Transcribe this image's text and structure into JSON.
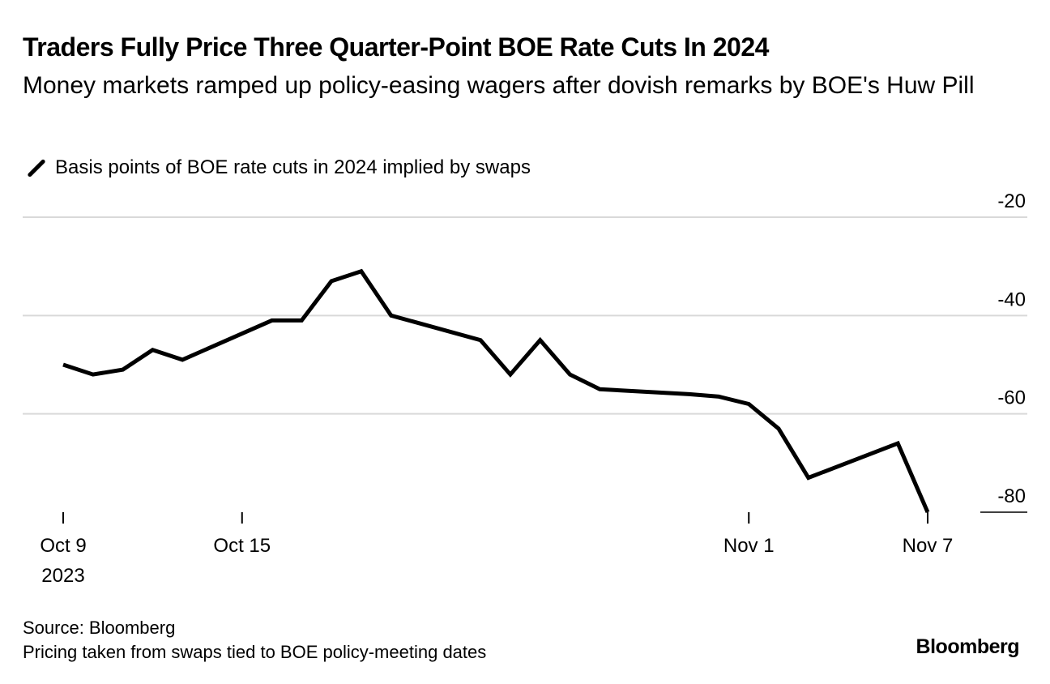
{
  "chart_data": {
    "type": "line",
    "title": "Traders Fully Price Three Quarter-Point BOE Rate Cuts In 2024",
    "subtitle": "Money markets ramped up policy-easing wagers after dovish remarks by BOE's Huw Pill",
    "legend": "Basis points of BOE rate cuts in 2024 implied by swaps",
    "ylim": [
      -80,
      -20
    ],
    "yticks": [
      -20,
      -40,
      -60,
      -80
    ],
    "xlim": [
      0,
      29
    ],
    "xticks": [
      {
        "x": 0,
        "label": "Oct 9",
        "sublabel": "2023"
      },
      {
        "x": 6,
        "label": "Oct 15",
        "sublabel": ""
      },
      {
        "x": 23,
        "label": "Nov 1",
        "sublabel": ""
      },
      {
        "x": 29,
        "label": "Nov 7",
        "sublabel": ""
      }
    ],
    "series": [
      {
        "name": "Basis points of BOE rate cuts in 2024 implied by swaps",
        "x": [
          0,
          1,
          2,
          3,
          4,
          7,
          8,
          9,
          10,
          11,
          14,
          15,
          16,
          17,
          18,
          21,
          22,
          23,
          24,
          25,
          28,
          29
        ],
        "values": [
          -50,
          -52,
          -51,
          -47,
          -49,
          -41,
          -41,
          -33,
          -31,
          -40,
          -45,
          -52,
          -45,
          -52,
          -55,
          -56,
          -56.5,
          -58,
          -63,
          -73,
          -66,
          -80
        ]
      }
    ]
  },
  "footer": {
    "source": "Source: Bloomberg",
    "note": "Pricing taken from swaps tied to BOE policy-meeting dates"
  },
  "brand": "Bloomberg"
}
